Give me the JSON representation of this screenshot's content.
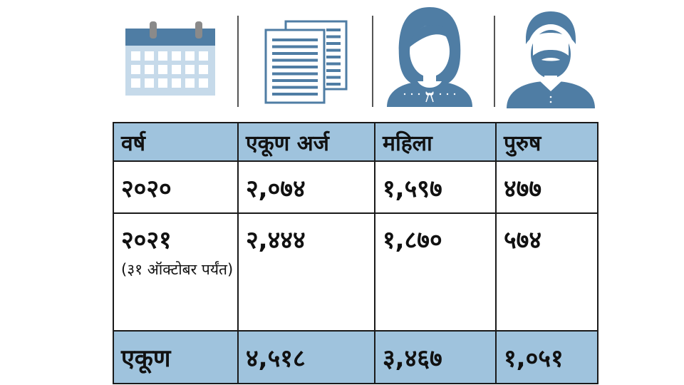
{
  "icons": [
    {
      "name": "calendar-icon"
    },
    {
      "name": "documents-icon"
    },
    {
      "name": "female-user-icon"
    },
    {
      "name": "male-user-icon"
    }
  ],
  "colors": {
    "accent": "#4f7da4",
    "header_bg": "#9fc3dd",
    "calendar_light": "#c6daea"
  },
  "table": {
    "headers": [
      "वर्ष",
      "एकूण अर्ज",
      "महिला",
      "पुरुष"
    ],
    "rows": [
      {
        "year": "२०२०",
        "note": "",
        "total": "२,०७४",
        "female": "१,५९७",
        "male": "४७७"
      },
      {
        "year": "२०२१",
        "note": "(३१ ऑक्टोबर पर्यंत)",
        "total": "२,४४४",
        "female": "१,८७०",
        "male": "५७४"
      }
    ],
    "footer": {
      "label": "एकूण",
      "total": "४,५१८",
      "female": "३,४६७",
      "male": "१,०५१"
    }
  }
}
